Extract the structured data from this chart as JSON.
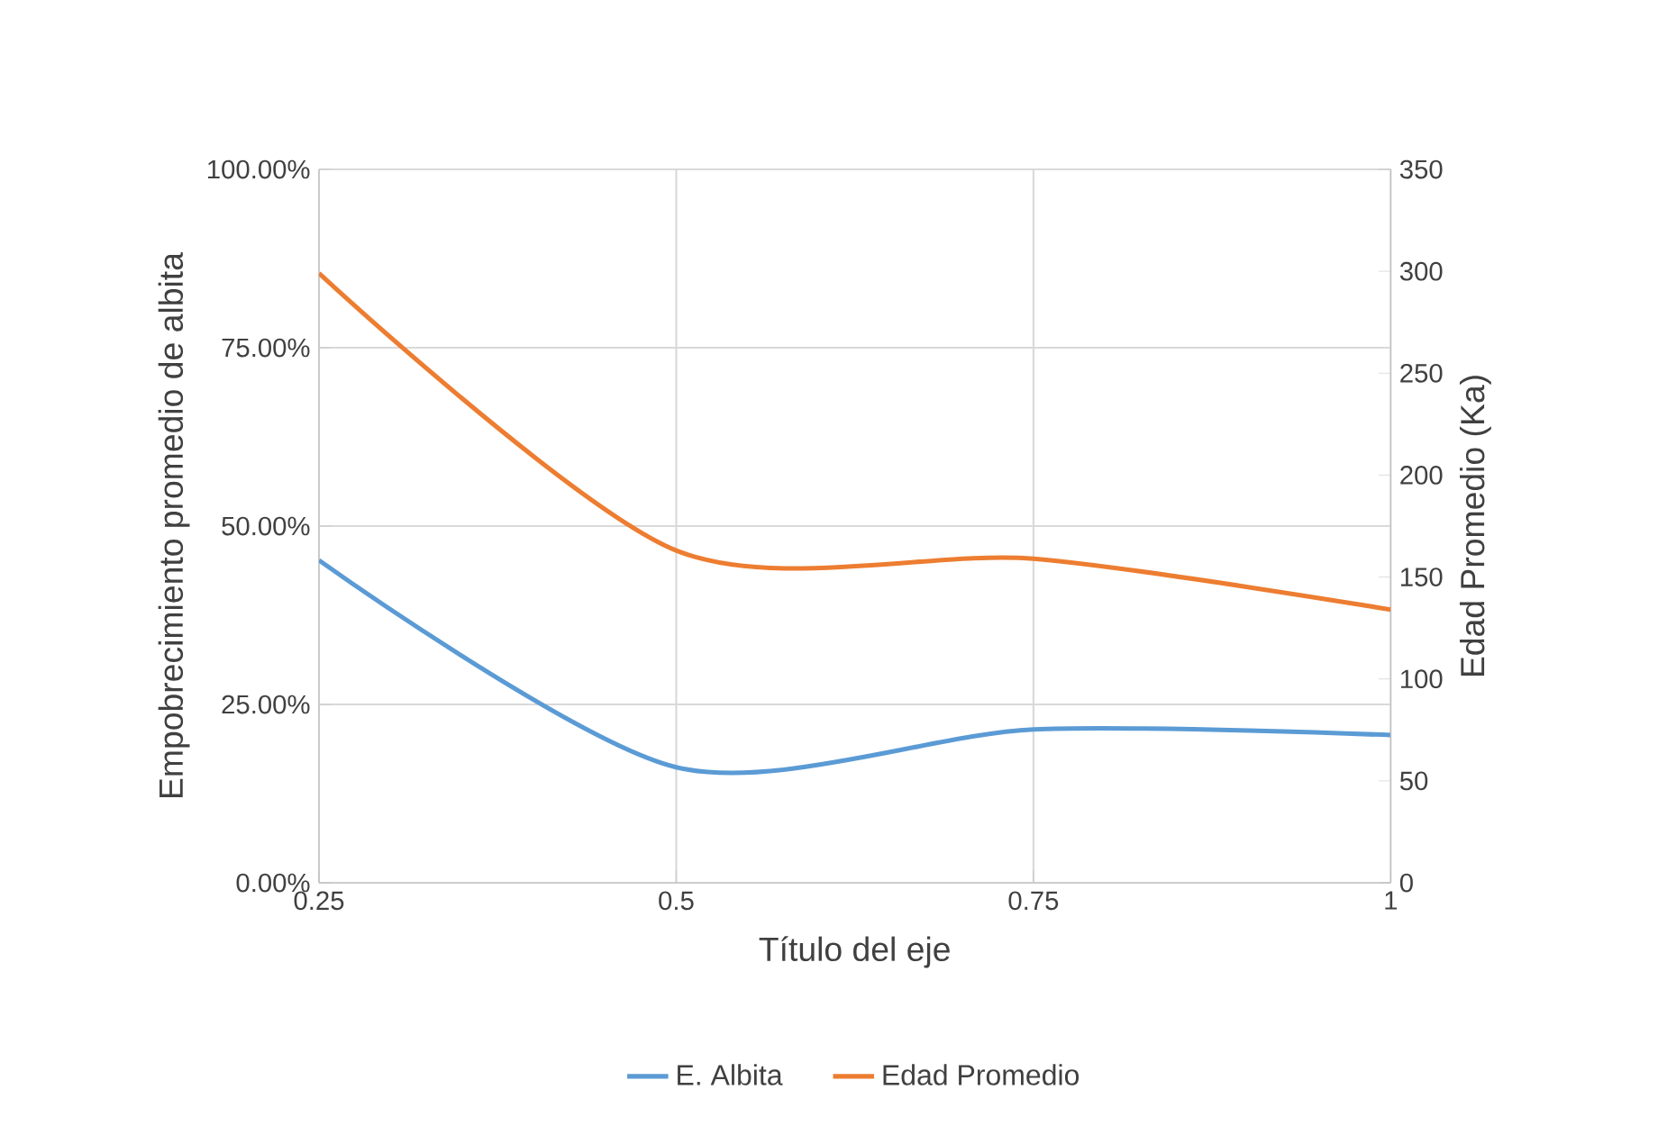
{
  "chart_data": {
    "type": "line",
    "xlabel": "Título del eje",
    "ylabel": "Empobrecimiento promedio de albita",
    "y2label": "Edad Promedio (Ka)",
    "x": [
      0.25,
      0.5,
      0.75,
      1
    ],
    "series": [
      {
        "name": "E. Albita",
        "color": "#5b9bd5",
        "values": [
          45.2,
          16.2,
          21.5,
          20.7
        ]
      },
      {
        "name": "Edad Promedio",
        "color": "#ed7d31",
        "axis": "y2",
        "values": [
          299,
          163,
          159,
          134
        ]
      }
    ],
    "xlim": [
      0.25,
      1
    ],
    "xticks": [
      0.25,
      0.5,
      0.75,
      1
    ],
    "ylim": [
      0,
      100
    ],
    "yticks": [
      {
        "value": 0,
        "label": "0.00%"
      },
      {
        "value": 25,
        "label": "25.00%"
      },
      {
        "value": 50,
        "label": "50.00%"
      },
      {
        "value": 75,
        "label": "75.00%"
      },
      {
        "value": 100,
        "label": "100.00%"
      }
    ],
    "y2lim": [
      0,
      350
    ],
    "y2ticks": [
      0,
      50,
      100,
      150,
      200,
      250,
      300,
      350
    ],
    "grid": true,
    "legend": "bottom",
    "marker": "none",
    "line_style": "solid"
  }
}
